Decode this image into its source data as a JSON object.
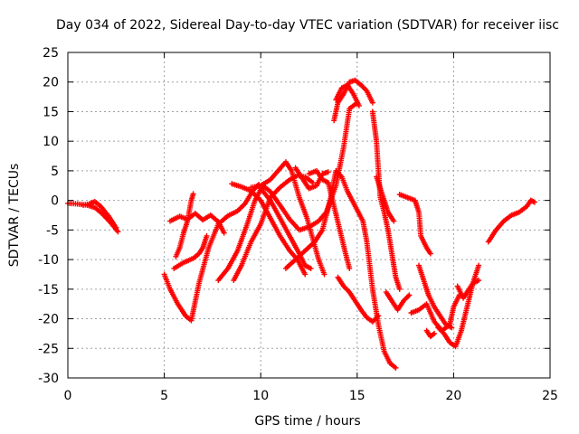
{
  "chart_data": {
    "type": "scatter",
    "title": "Day 034 of 2022, Sidereal Day-to-day VTEC variation (SDTVAR) for receiver iisc",
    "xlabel": "GPS time / hours",
    "ylabel": "SDTVAR / TECUs",
    "xlim": [
      0,
      25
    ],
    "ylim": [
      -30,
      25
    ],
    "xticks": [
      "0",
      "5",
      "10",
      "15",
      "20",
      "25"
    ],
    "yticks": [
      "-30",
      "-25",
      "-20",
      "-15",
      "-10",
      "-5",
      "0",
      "5",
      "10",
      "15",
      "20",
      "25"
    ],
    "grid": true,
    "marker": "plus",
    "color": "#ff0000",
    "tracks": [
      [
        [
          0,
          -0.5
        ],
        [
          0.5,
          -0.6
        ],
        [
          1.0,
          -0.8
        ],
        [
          1.4,
          -1.2
        ],
        [
          1.8,
          -2.3
        ],
        [
          2.2,
          -3.7
        ],
        [
          2.6,
          -5.3
        ]
      ],
      [
        [
          0.8,
          -0.8
        ],
        [
          1.1,
          -0.6
        ],
        [
          1.4,
          -0.2
        ],
        [
          1.7,
          -1.0
        ],
        [
          2.1,
          -2.6
        ],
        [
          2.5,
          -4.6
        ]
      ],
      [
        [
          5.0,
          -12.5
        ],
        [
          5.3,
          -15.0
        ],
        [
          5.7,
          -17.5
        ],
        [
          6.1,
          -19.5
        ],
        [
          6.4,
          -20.3
        ],
        [
          6.8,
          -14.0
        ],
        [
          7.3,
          -8.0
        ],
        [
          7.8,
          -4.0
        ],
        [
          8.3,
          -2.6
        ],
        [
          8.8,
          -1.8
        ],
        [
          9.2,
          -0.5
        ],
        [
          9.6,
          1.7
        ],
        [
          9.9,
          2.7
        ]
      ],
      [
        [
          5.3,
          -3.5
        ],
        [
          5.8,
          -2.7
        ],
        [
          6.2,
          -3.2
        ],
        [
          6.6,
          -2.2
        ],
        [
          7.0,
          -3.3
        ],
        [
          7.4,
          -2.5
        ],
        [
          7.8,
          -3.6
        ],
        [
          8.1,
          -5.5
        ]
      ],
      [
        [
          5.5,
          -11.5
        ],
        [
          6.0,
          -10.5
        ],
        [
          6.5,
          -9.8
        ],
        [
          6.8,
          -9.0
        ],
        [
          7.0,
          -8.0
        ],
        [
          7.2,
          -6.0
        ]
      ],
      [
        [
          5.6,
          -9.5
        ],
        [
          5.8,
          -8.0
        ],
        [
          6.0,
          -5.5
        ],
        [
          6.2,
          -3.5
        ],
        [
          6.4,
          0.0
        ],
        [
          6.5,
          1.1
        ]
      ],
      [
        [
          7.8,
          -13.5
        ],
        [
          8.3,
          -11.5
        ],
        [
          8.8,
          -8.5
        ],
        [
          9.3,
          -4.0
        ],
        [
          9.7,
          0.0
        ],
        [
          10.1,
          2.5
        ],
        [
          10.5,
          1.5
        ],
        [
          11.0,
          -0.8
        ],
        [
          11.5,
          -3.2
        ],
        [
          12.0,
          -5.0
        ],
        [
          12.5,
          -4.5
        ],
        [
          13.0,
          -3.5
        ],
        [
          13.4,
          -2.0
        ],
        [
          13.9,
          2.5
        ],
        [
          14.3,
          9.0
        ],
        [
          14.6,
          15.5
        ],
        [
          15.0,
          16.5
        ]
      ],
      [
        [
          8.6,
          -13.5
        ],
        [
          9.0,
          -11.0
        ],
        [
          9.5,
          -7.0
        ],
        [
          10.0,
          -4.0
        ],
        [
          10.5,
          0.5
        ],
        [
          11.0,
          2.2
        ],
        [
          11.5,
          3.5
        ],
        [
          11.9,
          4.2
        ],
        [
          12.3,
          4.0
        ],
        [
          12.7,
          3.0
        ]
      ],
      [
        [
          8.5,
          2.8
        ],
        [
          9.0,
          2.3
        ],
        [
          9.5,
          1.6
        ],
        [
          10.0,
          0.0
        ],
        [
          10.5,
          -3.0
        ],
        [
          11.0,
          -6.0
        ],
        [
          11.5,
          -8.5
        ],
        [
          11.9,
          -10.0
        ],
        [
          12.3,
          -12.5
        ]
      ],
      [
        [
          9.5,
          2.2
        ],
        [
          10.0,
          2.5
        ],
        [
          10.5,
          3.5
        ],
        [
          10.9,
          5.0
        ],
        [
          11.3,
          6.5
        ],
        [
          11.6,
          5.0
        ],
        [
          12.0,
          0.5
        ],
        [
          12.4,
          -3.0
        ],
        [
          12.7,
          -6.5
        ],
        [
          13.0,
          -10.0
        ],
        [
          13.3,
          -12.5
        ]
      ],
      [
        [
          10.0,
          2.0
        ],
        [
          10.5,
          0.0
        ],
        [
          11.0,
          -3.0
        ],
        [
          11.5,
          -6.0
        ],
        [
          12.0,
          -9.0
        ],
        [
          12.3,
          -11.0
        ],
        [
          12.6,
          -11.5
        ]
      ],
      [
        [
          11.3,
          -11.5
        ],
        [
          11.8,
          -10.0
        ],
        [
          12.3,
          -8.5
        ],
        [
          12.8,
          -7.0
        ],
        [
          13.2,
          -5.0
        ],
        [
          13.6,
          0.0
        ],
        [
          13.9,
          5.0
        ],
        [
          14.2,
          4.0
        ],
        [
          14.5,
          1.5
        ],
        [
          14.9,
          -1.0
        ],
        [
          15.3,
          -3.5
        ],
        [
          15.5,
          -7.0
        ],
        [
          15.8,
          -15.0
        ],
        [
          16.1,
          -21.0
        ],
        [
          16.4,
          -25.5
        ],
        [
          16.7,
          -27.5
        ],
        [
          17.0,
          -28.3
        ]
      ],
      [
        [
          12.5,
          4.5
        ],
        [
          12.9,
          5.0
        ],
        [
          13.2,
          3.5
        ],
        [
          13.5,
          3.0
        ],
        [
          13.8,
          -1.0
        ],
        [
          14.1,
          -5.0
        ],
        [
          14.4,
          -9.0
        ],
        [
          14.6,
          -11.5
        ]
      ],
      [
        [
          11.8,
          5.5
        ],
        [
          12.2,
          3.5
        ],
        [
          12.5,
          2.0
        ],
        [
          12.9,
          2.5
        ],
        [
          13.2,
          4.5
        ],
        [
          13.5,
          4.8
        ]
      ],
      [
        [
          13.8,
          13.5
        ],
        [
          14.0,
          16.5
        ],
        [
          14.3,
          18.0
        ],
        [
          14.6,
          20.0
        ],
        [
          14.9,
          20.3
        ],
        [
          15.2,
          19.5
        ],
        [
          15.5,
          18.5
        ],
        [
          15.8,
          16.5
        ]
      ],
      [
        [
          13.9,
          17.0
        ],
        [
          14.2,
          19.0
        ],
        [
          14.5,
          19.5
        ],
        [
          14.8,
          18.0
        ],
        [
          15.1,
          16.0
        ]
      ],
      [
        [
          14.0,
          -13.0
        ],
        [
          14.3,
          -14.5
        ],
        [
          14.6,
          -15.5
        ],
        [
          14.9,
          -17.0
        ],
        [
          15.2,
          -18.5
        ],
        [
          15.5,
          -19.8
        ],
        [
          15.8,
          -20.5
        ],
        [
          16.1,
          -19.5
        ]
      ],
      [
        [
          15.8,
          15.0
        ],
        [
          16.0,
          10.0
        ],
        [
          16.1,
          5.0
        ],
        [
          16.2,
          0.5
        ],
        [
          16.4,
          -2.0
        ],
        [
          16.6,
          -5.0
        ],
        [
          16.8,
          -9.0
        ],
        [
          17.0,
          -13.0
        ],
        [
          17.2,
          -15.0
        ]
      ],
      [
        [
          16.0,
          4.0
        ],
        [
          16.2,
          2.0
        ],
        [
          16.4,
          0.0
        ],
        [
          16.6,
          -2.0
        ],
        [
          16.9,
          -3.5
        ]
      ],
      [
        [
          16.5,
          -15.5
        ],
        [
          16.8,
          -17.0
        ],
        [
          17.1,
          -18.5
        ],
        [
          17.4,
          -17.0
        ],
        [
          17.7,
          -16.0
        ]
      ],
      [
        [
          17.2,
          1.0
        ],
        [
          17.6,
          0.5
        ],
        [
          18.0,
          0.0
        ],
        [
          18.2,
          -2.0
        ],
        [
          18.3,
          -6.0
        ],
        [
          18.6,
          -8.0
        ],
        [
          18.8,
          -9.0
        ]
      ],
      [
        [
          18.2,
          -11.0
        ],
        [
          18.5,
          -14.0
        ],
        [
          18.7,
          -16.0
        ],
        [
          19.0,
          -18.0
        ],
        [
          19.3,
          -19.5
        ],
        [
          19.6,
          -21.0
        ],
        [
          19.9,
          -21.5
        ]
      ],
      [
        [
          17.8,
          -19.0
        ],
        [
          18.2,
          -18.5
        ],
        [
          18.6,
          -17.5
        ],
        [
          19.0,
          -20.5
        ],
        [
          19.4,
          -22.0
        ],
        [
          19.8,
          -21.0
        ],
        [
          20.0,
          -18.0
        ],
        [
          20.3,
          -16.0
        ]
      ],
      [
        [
          18.6,
          -22.0
        ],
        [
          18.8,
          -23.0
        ],
        [
          19.0,
          -22.5
        ]
      ],
      [
        [
          19.2,
          -21.5
        ],
        [
          19.5,
          -22.5
        ],
        [
          19.8,
          -24.0
        ],
        [
          20.1,
          -24.7
        ],
        [
          20.4,
          -22.0
        ],
        [
          20.7,
          -18.0
        ],
        [
          21.0,
          -14.0
        ],
        [
          21.3,
          -11.0
        ]
      ],
      [
        [
          20.2,
          -14.5
        ],
        [
          20.5,
          -16.5
        ],
        [
          20.8,
          -15.0
        ],
        [
          21.0,
          -14.0
        ],
        [
          21.3,
          -13.5
        ]
      ],
      [
        [
          21.8,
          -7.0
        ],
        [
          22.2,
          -5.0
        ],
        [
          22.6,
          -3.5
        ],
        [
          23.0,
          -2.5
        ],
        [
          23.4,
          -2.0
        ],
        [
          23.8,
          -1.0
        ],
        [
          24.0,
          0.0
        ],
        [
          24.2,
          -0.3
        ]
      ]
    ]
  }
}
